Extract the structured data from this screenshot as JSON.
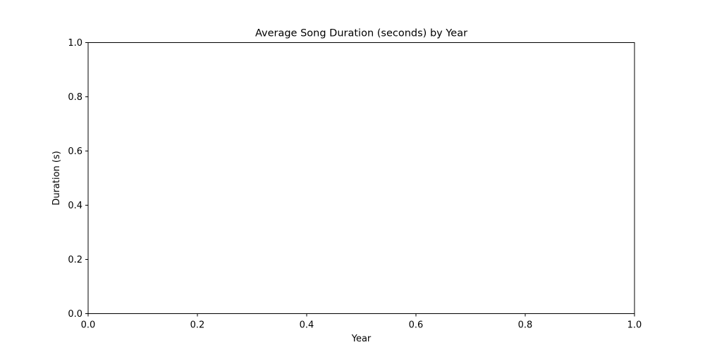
{
  "chart_data": {
    "type": "line",
    "title": "Average Song Duration (seconds) by Year",
    "xlabel": "Year",
    "ylabel": "Duration (s)",
    "xlim": [
      0,
      1
    ],
    "ylim": [
      0,
      1
    ],
    "x_ticks": [
      "0.0",
      "0.2",
      "0.4",
      "0.6",
      "0.8",
      "1.0"
    ],
    "y_ticks": [
      "0.0",
      "0.2",
      "0.4",
      "0.6",
      "0.8",
      "1.0"
    ],
    "series": [],
    "grid": false
  }
}
